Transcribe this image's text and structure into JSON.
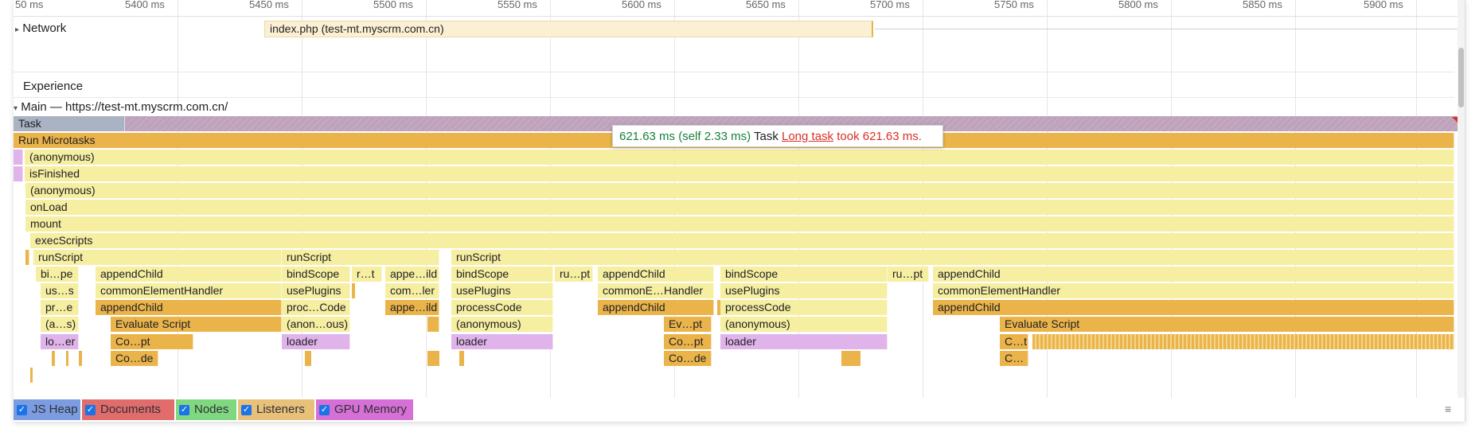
{
  "ruler": {
    "ticks": [
      "50 ms",
      "5400 ms",
      "5450 ms",
      "5500 ms",
      "5550 ms",
      "5600 ms",
      "5650 ms",
      "5700 ms",
      "5750 ms",
      "5800 ms",
      "5850 ms",
      "5900 ms"
    ]
  },
  "tracks": {
    "network": {
      "label": "Network",
      "request": "index.php (test-mt.myscrm.com.cn)"
    },
    "experience": {
      "label": "Experience"
    },
    "main": {
      "label": "Main — https://test-mt.myscrm.com.cn/"
    }
  },
  "flame": {
    "task": "Task",
    "run_microtasks": "Run Microtasks",
    "anonymous_1": "(anonymous)",
    "is_finished": "isFinished",
    "anonymous_2": "(anonymous)",
    "on_load": "onLoad",
    "mount": "mount",
    "exec_scripts": "execScripts",
    "run_script": "runScript",
    "bind_scope_short": "bi…pe",
    "append_child": "appendChild",
    "bind_scope": "bindScope",
    "r_t": "r…t",
    "appe_ild": "appe…ild",
    "ru_pt": "ru…pt",
    "us_s": "us…s",
    "common_element_handler": "commonElementHandler",
    "use_plugins": "usePlugins",
    "com_ler": "com…ler",
    "common_e_handler": "commonE…Handler",
    "pr_e": "pr…e",
    "proc_code": "proc…Code",
    "process_code": "processCode",
    "a_s": "(a…s)",
    "evaluate_script": "Evaluate Script",
    "anon_ous": "(anon…ous)",
    "anonymous_3": "(anonymous)",
    "ev_pt": "Ev…pt",
    "lo_er": "lo…er",
    "co_pt": "Co…pt",
    "loader": "loader",
    "c_t": "C…t",
    "co_de": "Co…de",
    "c_ellipsis": "C…"
  },
  "tooltip": {
    "time": "621.63 ms (self 2.33 ms)",
    "name": "Task",
    "link": "Long task",
    "took": "took 621.63 ms."
  },
  "legend": [
    {
      "label": "JS Heap",
      "color": "#7b9ce0",
      "checked": true
    },
    {
      "label": "Documents",
      "color": "#e06c6c",
      "checked": true
    },
    {
      "label": "Nodes",
      "color": "#7fd77f",
      "checked": true
    },
    {
      "label": "Listeners",
      "color": "#e7c07a",
      "checked": true
    },
    {
      "label": "GPU Memory",
      "color": "#d66fd6",
      "checked": true
    }
  ],
  "colors": {
    "yellow": "#f6eea1",
    "orange": "#ebb44a",
    "pink": "#e0b3ea",
    "tooltip_green": "#188038",
    "tooltip_red": "#d93025"
  }
}
